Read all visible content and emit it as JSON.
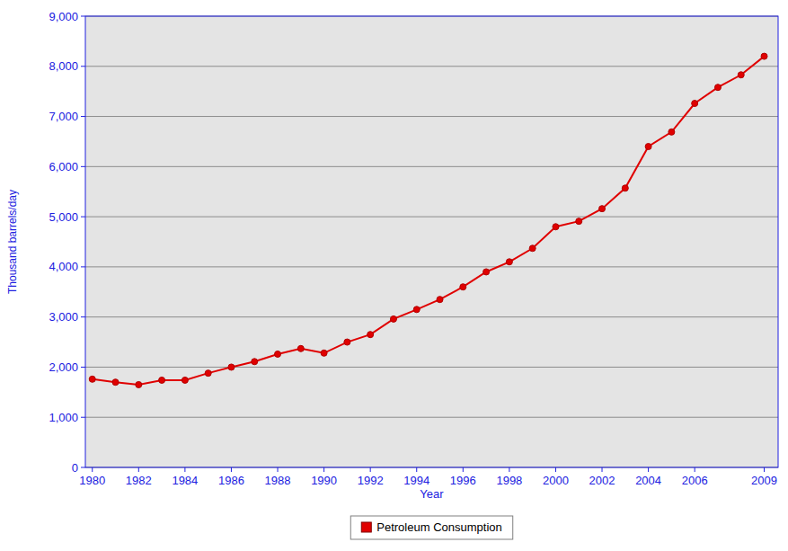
{
  "chart_data": {
    "type": "line",
    "x_label": "Year",
    "y_label": "Thousand barrels/day",
    "x": [
      1980,
      1981,
      1982,
      1983,
      1984,
      1985,
      1986,
      1987,
      1988,
      1989,
      1990,
      1991,
      1992,
      1993,
      1994,
      1995,
      1996,
      1997,
      1998,
      1999,
      2000,
      2001,
      2002,
      2003,
      2004,
      2005,
      2006,
      2007,
      2008,
      2009
    ],
    "series": [
      {
        "name": "Petroleum Consumption",
        "color": "#e00000",
        "marker": "circle",
        "line_style": "solid",
        "values": [
          1760,
          1700,
          1650,
          1740,
          1740,
          1880,
          2000,
          2110,
          2260,
          2370,
          2280,
          2500,
          2650,
          2960,
          3150,
          3350,
          3600,
          3900,
          4100,
          4370,
          4800,
          4910,
          5160,
          5570,
          6400,
          6690,
          7260,
          7580,
          7830,
          8200
        ]
      }
    ],
    "xlim": [
      1979.7,
      2009.6
    ],
    "xticks": [
      1980,
      1982,
      1984,
      1986,
      1988,
      1990,
      1992,
      1994,
      1996,
      1998,
      2000,
      2002,
      2004,
      2006,
      2009
    ],
    "ylim": [
      0,
      9000
    ],
    "yticks": [
      0,
      {
        "value": 1000,
        "label": "1,000"
      },
      {
        "value": 2000,
        "label": "2,000"
      },
      {
        "value": 3000,
        "label": "3,000"
      },
      {
        "value": 4000,
        "label": "4,000"
      },
      {
        "value": 5000,
        "label": "5,000"
      },
      {
        "value": 6000,
        "label": "6,000"
      },
      {
        "value": 7000,
        "label": "7,000"
      },
      {
        "value": 8000,
        "label": "8,000"
      },
      {
        "value": 9000,
        "label": "9,000"
      }
    ],
    "grid": true,
    "legend": "bottom"
  }
}
